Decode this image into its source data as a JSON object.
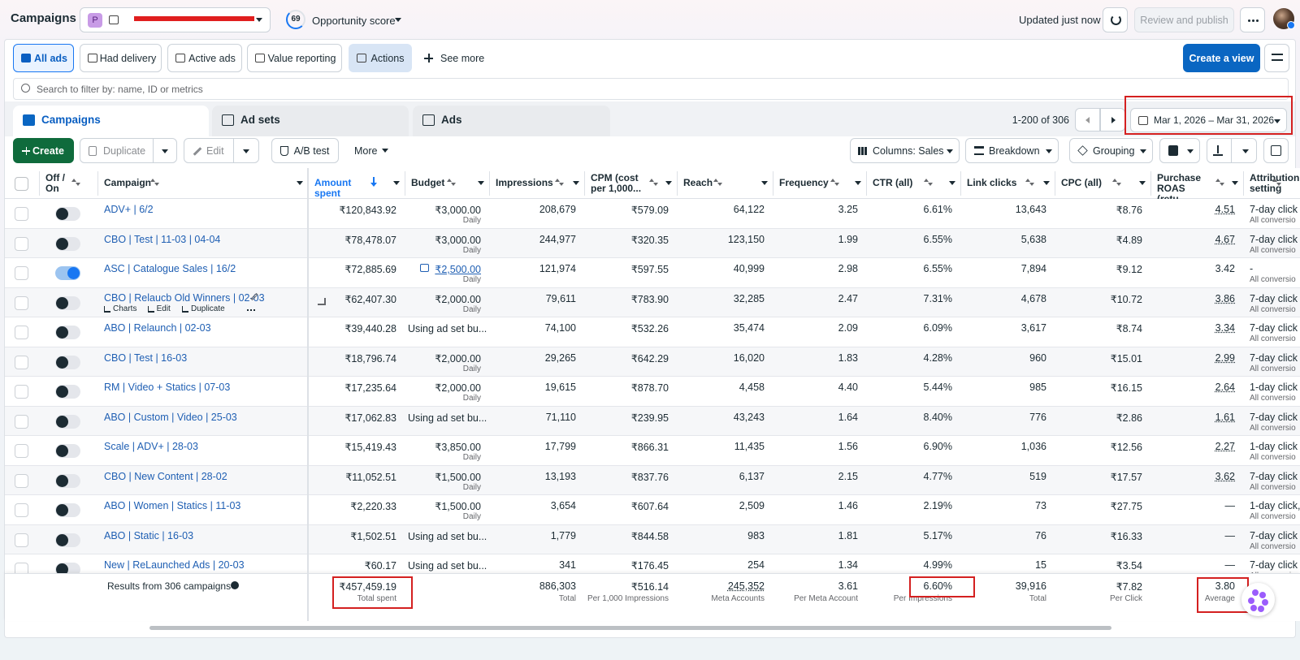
{
  "header": {
    "title": "Campaigns",
    "account_badge": "P",
    "opportunity_score": "69",
    "opportunity_label": "Opportunity score",
    "status": "Updated just now",
    "publish_button": "Review and publish"
  },
  "filters": {
    "items": [
      "All ads",
      "Had delivery",
      "Active ads",
      "Value reporting",
      "Actions"
    ],
    "see_more": "See more",
    "create_view": "Create a view"
  },
  "search": {
    "placeholder": "Search to filter by: name, ID or metrics"
  },
  "tabs": {
    "items": [
      "Campaigns",
      "Ad sets",
      "Ads"
    ],
    "pagination": "1-200 of 306",
    "date_range": "Mar 1, 2026 – Mar 31, 2026"
  },
  "toolbar": {
    "create": "Create",
    "duplicate": "Duplicate",
    "edit": "Edit",
    "ab_test": "A/B test",
    "more": "More",
    "columns": "Columns: Sales",
    "breakdown": "Breakdown",
    "grouping": "Grouping"
  },
  "table": {
    "columns": [
      "Off / On",
      "Campaign",
      "Amount spent",
      "Budget",
      "Impressions",
      "CPM (cost per 1,000...",
      "Reach",
      "Frequency",
      "CTR (all)",
      "Link clicks",
      "CPC (all)",
      "Purchase ROAS (retu...",
      "Attribution setting"
    ],
    "rows": [
      {
        "on": false,
        "name": "ADV+ | 6/2",
        "amount_spent": "₹120,843.92",
        "budget": "₹3,000.00",
        "budget_period": "Daily",
        "impressions": "208,679",
        "cpm": "₹579.09",
        "reach": "64,122",
        "frequency": "3.25",
        "ctr": "6.61%",
        "link_clicks": "13,643",
        "cpc": "₹8.76",
        "roas": "4.51",
        "attribution": "7-day click",
        "attribution_detail": "All conversio"
      },
      {
        "on": false,
        "name": "CBO | Test | 11-03 | 04-04",
        "amount_spent": "₹78,478.07",
        "budget": "₹3,000.00",
        "budget_period": "Daily",
        "impressions": "244,977",
        "cpm": "₹320.35",
        "reach": "123,150",
        "frequency": "1.99",
        "ctr": "6.55%",
        "link_clicks": "5,638",
        "cpc": "₹4.89",
        "roas": "4.67",
        "attribution": "7-day click",
        "attribution_detail": "All conversio"
      },
      {
        "on": true,
        "name": "ASC | Catalogue Sales | 16/2",
        "amount_spent": "₹72,885.69",
        "budget": "₹2,500.00",
        "budget_period": "Daily",
        "impressions": "121,974",
        "cpm": "₹597.55",
        "reach": "40,999",
        "frequency": "2.98",
        "ctr": "6.55%",
        "link_clicks": "7,894",
        "cpc": "₹9.12",
        "roas": "3.42",
        "attribution": "-",
        "attribution_detail": "All conversio"
      },
      {
        "on": false,
        "name": "CBO | Relaucb Old Winners | 02-03",
        "actions": [
          "Charts",
          "Edit",
          "Duplicate"
        ],
        "amount_spent": "₹62,407.30",
        "budget": "₹2,000.00",
        "budget_period": "Daily",
        "impressions": "79,611",
        "cpm": "₹783.90",
        "reach": "32,285",
        "frequency": "2.47",
        "ctr": "7.31%",
        "link_clicks": "4,678",
        "cpc": "₹10.72",
        "roas": "3.86",
        "attribution": "7-day click",
        "attribution_detail": "All conversio"
      },
      {
        "on": false,
        "name": "ABO | Relaunch | 02-03",
        "amount_spent": "₹39,440.28",
        "budget": "Using ad set bu...",
        "impressions": "74,100",
        "cpm": "₹532.26",
        "reach": "35,474",
        "frequency": "2.09",
        "ctr": "6.09%",
        "link_clicks": "3,617",
        "cpc": "₹8.74",
        "roas": "3.34",
        "attribution": "7-day click",
        "attribution_detail": "All conversio"
      },
      {
        "on": false,
        "name": "CBO | Test | 16-03",
        "amount_spent": "₹18,796.74",
        "budget": "₹2,000.00",
        "budget_period": "Daily",
        "impressions": "29,265",
        "cpm": "₹642.29",
        "reach": "16,020",
        "frequency": "1.83",
        "ctr": "4.28%",
        "link_clicks": "960",
        "cpc": "₹15.01",
        "roas": "2.99",
        "attribution": "7-day click",
        "attribution_detail": "All conversio"
      },
      {
        "on": false,
        "name": "RM | Video + Statics | 07-03",
        "amount_spent": "₹17,235.64",
        "budget": "₹2,000.00",
        "budget_period": "Daily",
        "impressions": "19,615",
        "cpm": "₹878.70",
        "reach": "4,458",
        "frequency": "4.40",
        "ctr": "5.44%",
        "link_clicks": "985",
        "cpc": "₹16.15",
        "roas": "2.64",
        "attribution": "1-day click",
        "attribution_detail": "All conversio"
      },
      {
        "on": false,
        "name": "ABO | Custom | Video | 25-03",
        "amount_spent": "₹17,062.83",
        "budget": "Using ad set bu...",
        "impressions": "71,110",
        "cpm": "₹239.95",
        "reach": "43,243",
        "frequency": "1.64",
        "ctr": "8.40%",
        "link_clicks": "776",
        "cpc": "₹2.86",
        "roas": "1.61",
        "attribution": "7-day click",
        "attribution_detail": "All conversio"
      },
      {
        "on": false,
        "name": "Scale | ADV+ | 28-03",
        "amount_spent": "₹15,419.43",
        "budget": "₹3,850.00",
        "budget_period": "Daily",
        "impressions": "17,799",
        "cpm": "₹866.31",
        "reach": "11,435",
        "frequency": "1.56",
        "ctr": "6.90%",
        "link_clicks": "1,036",
        "cpc": "₹12.56",
        "roas": "2.27",
        "attribution": "1-day click",
        "attribution_detail": "All conversio"
      },
      {
        "on": false,
        "name": "CBO | New Content | 28-02",
        "amount_spent": "₹11,052.51",
        "budget": "₹1,500.00",
        "budget_period": "Daily",
        "impressions": "13,193",
        "cpm": "₹837.76",
        "reach": "6,137",
        "frequency": "2.15",
        "ctr": "4.77%",
        "link_clicks": "519",
        "cpc": "₹17.57",
        "roas": "3.62",
        "attribution": "7-day click",
        "attribution_detail": "All conversio"
      },
      {
        "on": false,
        "name": "ABO | Women | Statics | 11-03",
        "amount_spent": "₹2,220.33",
        "budget": "₹1,500.00",
        "budget_period": "Daily",
        "impressions": "3,654",
        "cpm": "₹607.64",
        "reach": "2,509",
        "frequency": "1.46",
        "ctr": "2.19%",
        "link_clicks": "73",
        "cpc": "₹27.75",
        "roas": "—",
        "attribution": "1-day click,",
        "attribution_detail": "All conversio"
      },
      {
        "on": false,
        "name": "ABO | Static | 16-03",
        "amount_spent": "₹1,502.51",
        "budget": "Using ad set bu...",
        "impressions": "1,779",
        "cpm": "₹844.58",
        "reach": "983",
        "frequency": "1.81",
        "ctr": "5.17%",
        "link_clicks": "76",
        "cpc": "₹16.33",
        "roas": "—",
        "attribution": "7-day click",
        "attribution_detail": "All conversio"
      },
      {
        "on": false,
        "name": "New | ReLaunched Ads | 20-03",
        "amount_spent": "₹60.17",
        "budget": "Using ad set bu...",
        "impressions": "341",
        "cpm": "₹176.45",
        "reach": "254",
        "frequency": "1.34",
        "ctr": "4.99%",
        "link_clicks": "15",
        "cpc": "₹3.54",
        "roas": "—",
        "attribution": "7-day click",
        "attribution_detail": "All conversio"
      }
    ],
    "footer": {
      "label": "Results from 306 campaigns",
      "amount_spent": {
        "value": "₹457,459.19",
        "label": "Total spent"
      },
      "impressions": {
        "value": "886,303",
        "label": "Total"
      },
      "cpm": {
        "value": "₹516.14",
        "label": "Per 1,000 Impressions"
      },
      "reach": {
        "value": "245,352",
        "label": "Meta Accounts"
      },
      "frequency": {
        "value": "3.61",
        "label": "Per Meta Account"
      },
      "ctr": {
        "value": "6.60%",
        "label": "Per Impressions"
      },
      "link_clicks": {
        "value": "39,916",
        "label": "Total"
      },
      "cpc": {
        "value": "₹7.82",
        "label": "Per Click"
      },
      "roas": {
        "value": "3.80",
        "label": "Average"
      }
    }
  }
}
